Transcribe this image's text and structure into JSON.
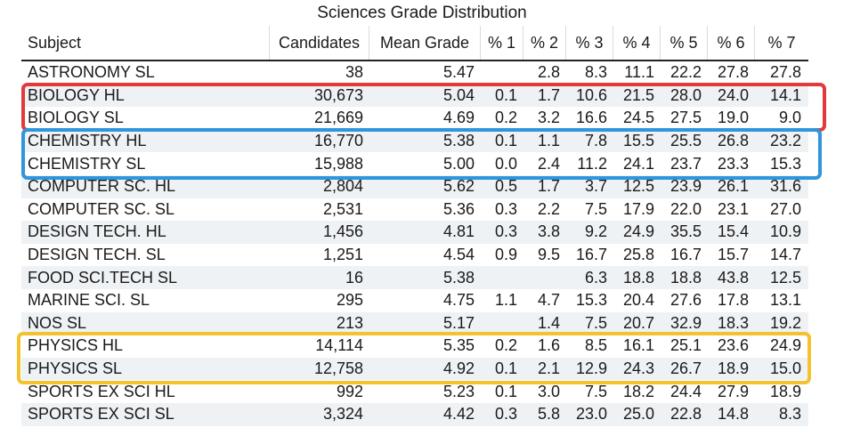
{
  "title": "Sciences Grade Distribution",
  "headers": [
    "Subject",
    "Candidates",
    "Mean Grade",
    "% 1",
    "% 2",
    "% 3",
    "% 4",
    "% 5",
    "% 6",
    "% 7"
  ],
  "rows": [
    [
      "ASTRONOMY SL",
      "38",
      "5.47",
      "",
      "2.8",
      "8.3",
      "11.1",
      "22.2",
      "27.8",
      "27.8"
    ],
    [
      "BIOLOGY HL",
      "30,673",
      "5.04",
      "0.1",
      "1.7",
      "10.6",
      "21.5",
      "28.0",
      "24.0",
      "14.1"
    ],
    [
      "BIOLOGY SL",
      "21,669",
      "4.69",
      "0.2",
      "3.2",
      "16.6",
      "24.5",
      "27.5",
      "19.0",
      "9.0"
    ],
    [
      "CHEMISTRY HL",
      "16,770",
      "5.38",
      "0.1",
      "1.1",
      "7.8",
      "15.5",
      "25.5",
      "26.8",
      "23.2"
    ],
    [
      "CHEMISTRY SL",
      "15,988",
      "5.00",
      "0.0",
      "2.4",
      "11.2",
      "24.1",
      "23.7",
      "23.3",
      "15.3"
    ],
    [
      "COMPUTER SC. HL",
      "2,804",
      "5.62",
      "0.5",
      "1.7",
      "3.7",
      "12.5",
      "23.9",
      "26.1",
      "31.6"
    ],
    [
      "COMPUTER SC. SL",
      "2,531",
      "5.36",
      "0.3",
      "2.2",
      "7.5",
      "17.9",
      "22.0",
      "23.1",
      "27.0"
    ],
    [
      "DESIGN TECH. HL",
      "1,456",
      "4.81",
      "0.3",
      "3.8",
      "9.2",
      "24.9",
      "35.5",
      "15.4",
      "10.9"
    ],
    [
      "DESIGN TECH. SL",
      "1,251",
      "4.54",
      "0.9",
      "9.5",
      "16.7",
      "25.8",
      "16.7",
      "15.7",
      "14.7"
    ],
    [
      "FOOD SCI.TECH SL",
      "16",
      "5.38",
      "",
      "",
      "6.3",
      "18.8",
      "18.8",
      "43.8",
      "12.5"
    ],
    [
      "MARINE SCI. SL",
      "295",
      "4.75",
      "1.1",
      "4.7",
      "15.3",
      "20.4",
      "27.6",
      "17.8",
      "13.1"
    ],
    [
      "NOS SL",
      "213",
      "5.17",
      "",
      "1.4",
      "7.5",
      "20.7",
      "32.9",
      "18.3",
      "19.2"
    ],
    [
      "PHYSICS HL",
      "14,114",
      "5.35",
      "0.2",
      "1.6",
      "8.5",
      "16.1",
      "25.1",
      "23.6",
      "24.9"
    ],
    [
      "PHYSICS SL",
      "12,758",
      "4.92",
      "0.1",
      "2.1",
      "12.9",
      "24.3",
      "26.7",
      "18.9",
      "15.0"
    ],
    [
      "SPORTS EX SCI HL",
      "992",
      "5.23",
      "0.1",
      "3.0",
      "7.5",
      "18.2",
      "24.4",
      "27.9",
      "18.9"
    ],
    [
      "SPORTS EX SCI SL",
      "3,324",
      "4.42",
      "0.3",
      "5.8",
      "23.0",
      "25.0",
      "22.8",
      "14.8",
      "8.3"
    ]
  ],
  "highlight_colors": {
    "red": "#e23a3a",
    "blue": "#2f95dc",
    "yellow": "#f3c22e"
  }
}
